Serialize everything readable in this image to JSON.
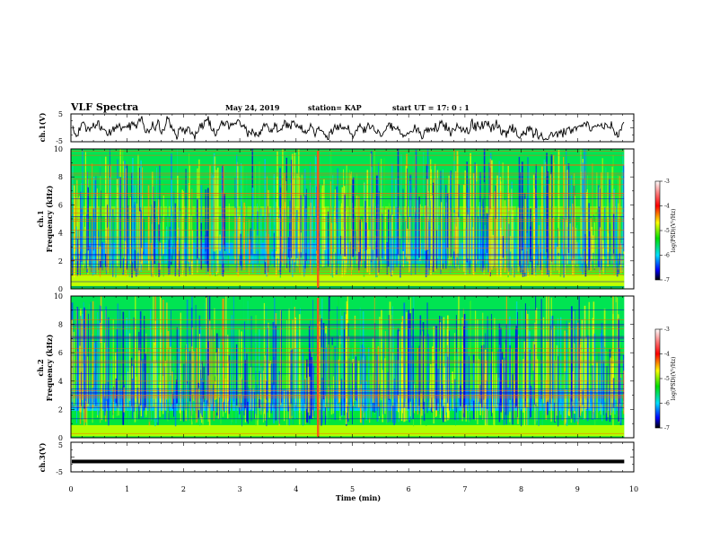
{
  "header": {
    "title": "VLF Spectra",
    "date": "May 24, 2019",
    "station": "station= KAP",
    "start": "start  UT =   17: 0  : 1"
  },
  "chart_data": [
    {
      "type": "line",
      "name": "ch1-waveform",
      "ylabel": "ch.1(V)",
      "ylim": [
        -5,
        5
      ],
      "yticks": [
        "5",
        "-5"
      ],
      "xlim": [
        0,
        10
      ],
      "data_end_min": 9.83
    },
    {
      "type": "heatmap",
      "name": "ch1-spectrogram",
      "ylabel_top": "ch.1",
      "ylabel": "Frequency  (kHz)",
      "ylim": [
        0,
        10
      ],
      "yticks": [
        "0",
        "2",
        "4",
        "6",
        "8",
        "10"
      ],
      "xlim": [
        0,
        10
      ],
      "colorbar": {
        "label": "log(PSD)(V²/Hz)",
        "range": [
          -7,
          -3
        ],
        "ticks": [
          "-3",
          "-4",
          "-5",
          "-6",
          "-7"
        ]
      }
    },
    {
      "type": "heatmap",
      "name": "ch2-spectrogram",
      "ylabel_top": "ch.2",
      "ylabel": "Frequency  (kHz)",
      "ylim": [
        0,
        10
      ],
      "yticks": [
        "0",
        "2",
        "4",
        "6",
        "8",
        "10"
      ],
      "xlim": [
        0,
        10
      ],
      "colorbar": {
        "label": "log(PSD)(V²/Hz)",
        "range": [
          -7,
          -3
        ],
        "ticks": [
          "-3",
          "-4",
          "-5",
          "-6",
          "-7"
        ]
      }
    },
    {
      "type": "line",
      "name": "ch3-waveform",
      "ylabel": "ch.3(V)",
      "ylim": [
        -5,
        5
      ],
      "yticks": [
        "5",
        "-5"
      ],
      "xlim": [
        0,
        10
      ],
      "constant_value": -1.5,
      "data_end_min": 9.83
    }
  ],
  "xaxis": {
    "label": "Time  (min)",
    "ticks": [
      "0",
      "1",
      "2",
      "3",
      "4",
      "5",
      "6",
      "7",
      "8",
      "9",
      "10"
    ]
  }
}
